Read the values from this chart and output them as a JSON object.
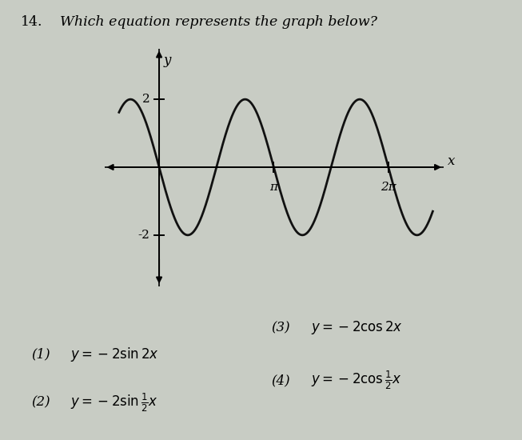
{
  "bg_color": "#c8ccc4",
  "curve_color": "#111111",
  "curve_linewidth": 2.0,
  "amplitude": -2,
  "frequency": 2,
  "x_start": -1.1,
  "x_end": 7.5,
  "xlim": [
    -1.5,
    7.8
  ],
  "ylim": [
    -3.5,
    3.5
  ],
  "pi": 3.14159265358979,
  "x_ticks_values": [
    3.14159265358979,
    6.28318530717959
  ],
  "x_ticks_labels": [
    "π",
    "2π"
  ],
  "y_ticks_values": [
    2,
    -2
  ],
  "y_ticks_labels": [
    "2",
    "-2"
  ],
  "title_14": "14.",
  "title_text": "Which equation represents the graph below?",
  "title_fontsize": 12.5,
  "answer_options": [
    {
      "num": "(1)",
      "math": "$y = -2\\sin 2x$",
      "fx": 0.06,
      "fy": 0.195
    },
    {
      "num": "(2)",
      "math": "$y = -2\\sin \\frac{1}{2}x$",
      "fx": 0.06,
      "fy": 0.085
    },
    {
      "num": "(3)",
      "math": "$y = -2\\cos 2x$",
      "fx": 0.52,
      "fy": 0.255
    },
    {
      "num": "(4)",
      "math": "$y = -2\\cos \\frac{1}{2}x$",
      "fx": 0.52,
      "fy": 0.135
    }
  ]
}
